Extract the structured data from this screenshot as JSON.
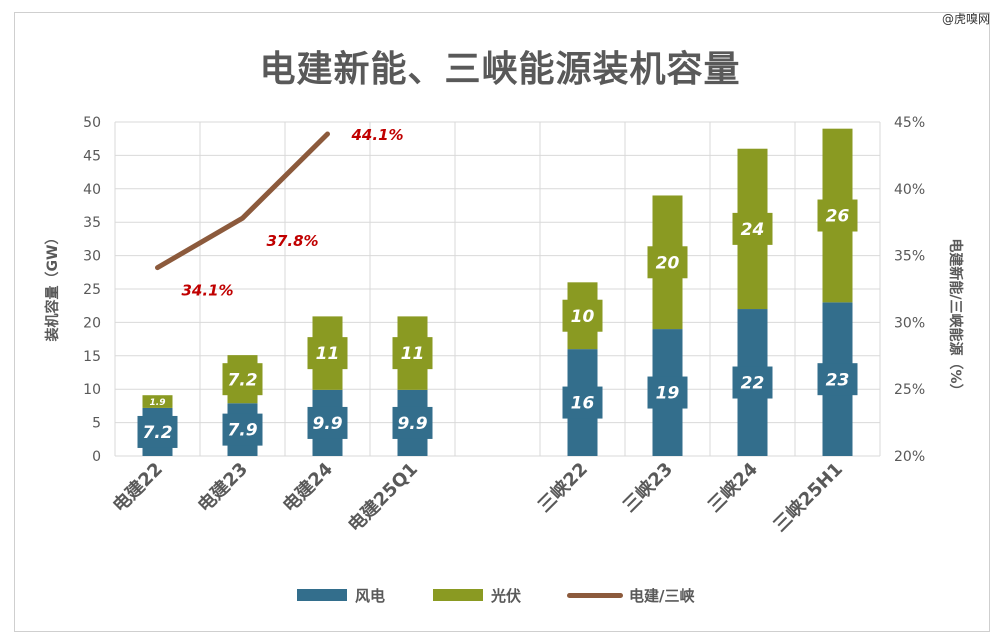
{
  "title": "电建新能、三峡能源装机容量",
  "watermark": "@虎嗅网",
  "colors": {
    "wind": "#336e8c",
    "solar": "#8a9a22",
    "ratio": "#8c5a3c",
    "ratio_label": "#c00000",
    "grid": "#d9d9d9"
  },
  "legend": [
    {
      "name": "风电",
      "kind": "bar",
      "color": "#336e8c"
    },
    {
      "name": "光伏",
      "kind": "bar",
      "color": "#8a9a22"
    },
    {
      "name": "电建/三峡",
      "kind": "line",
      "color": "#8c5a3c"
    }
  ],
  "chart_data": {
    "type": "bar",
    "stacked": true,
    "title": "电建新能、三峡能源装机容量",
    "categories": [
      "电建22",
      "电建23",
      "电建24",
      "电建25Q1",
      "",
      "三峡22",
      "三峡23",
      "三峡24",
      "三峡25H1"
    ],
    "ylabel": "装机容量（GW）",
    "ylim": [
      0,
      50
    ],
    "yticks": [
      0,
      5,
      10,
      15,
      20,
      25,
      30,
      35,
      40,
      45,
      50
    ],
    "y2label": "电建新能/三峡能源（%）",
    "y2lim": [
      20,
      45
    ],
    "y2ticks": [
      "20%",
      "25%",
      "30%",
      "35%",
      "40%",
      "45%"
    ],
    "y2tick_values": [
      20,
      25,
      30,
      35,
      40,
      45
    ],
    "grid": true,
    "legend_position": "bottom",
    "series": [
      {
        "name": "风电",
        "values": [
          7.2,
          7.9,
          9.9,
          9.9,
          null,
          16,
          19,
          22,
          23
        ],
        "labels": [
          "7.2",
          "7.9",
          "9.9",
          "9.9",
          "",
          "16",
          "19",
          "22",
          "23"
        ]
      },
      {
        "name": "光伏",
        "values": [
          1.9,
          7.2,
          11,
          11,
          null,
          10,
          20,
          24,
          26
        ],
        "labels": [
          "1.9",
          "7.2",
          "11",
          "11",
          "",
          "10",
          "20",
          "24",
          "26"
        ]
      }
    ],
    "line_series": {
      "name": "电建/三峡",
      "axis": "right",
      "values": [
        34.1,
        37.8,
        44.1,
        null,
        null,
        null,
        null,
        null,
        null
      ],
      "labels": [
        "34.1%",
        "37.8%",
        "44.1%",
        "",
        "",
        "",
        "",
        "",
        ""
      ]
    }
  }
}
